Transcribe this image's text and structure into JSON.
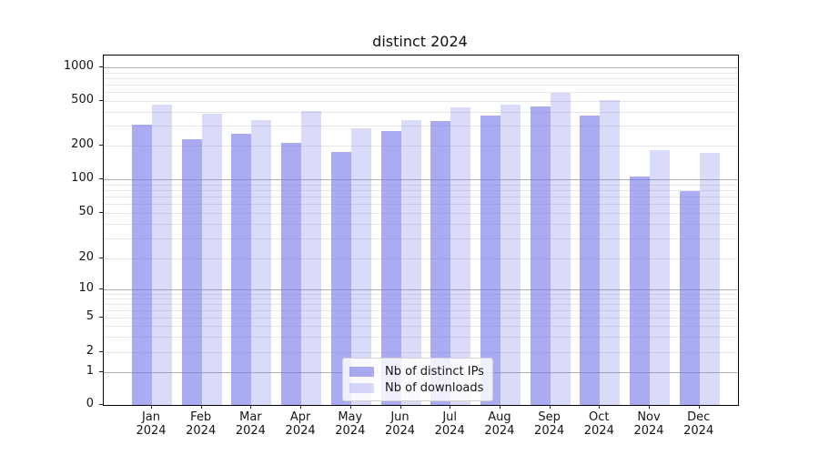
{
  "chart_data": {
    "type": "bar",
    "title": "distinct 2024",
    "categories": [
      "Jan",
      "Feb",
      "Mar",
      "Apr",
      "May",
      "Jun",
      "Jul",
      "Aug",
      "Sep",
      "Oct",
      "Nov",
      "Dec"
    ],
    "category_year": "2024",
    "series": [
      {
        "name": "Nb of distinct IPs",
        "color": "rgba(120,120,232,0.62)",
        "values": [
          310,
          230,
          255,
          213,
          175,
          268,
          333,
          370,
          445,
          372,
          105,
          78
        ]
      },
      {
        "name": "Nb of downloads",
        "color": "rgba(120,120,232,0.27)",
        "values": [
          465,
          385,
          340,
          410,
          285,
          340,
          435,
          465,
          590,
          505,
          182,
          173
        ]
      }
    ],
    "yscale": "log-like (symlog/asinh), 0 at baseline",
    "ytick_labels": [
      1000,
      500,
      200,
      100,
      50,
      20,
      10,
      5,
      2,
      1,
      0
    ],
    "ylim": [
      0,
      1300
    ],
    "grid": true,
    "legend_position": "lower center",
    "colors": {
      "major_grid": "#b0b0b0",
      "minor_grid": "#e7e7e7",
      "spine": "#000000",
      "text": "#151515"
    }
  }
}
